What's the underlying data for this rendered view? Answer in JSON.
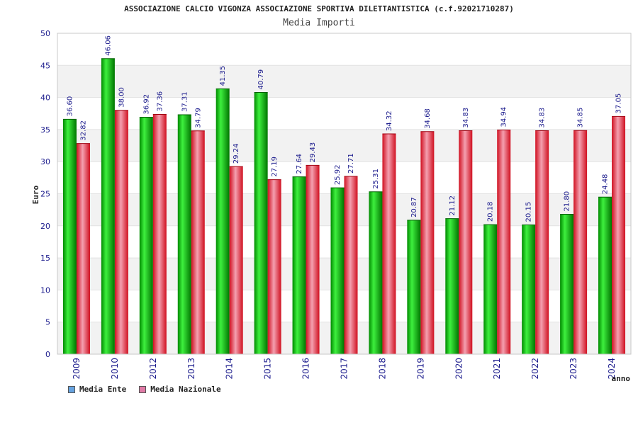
{
  "chart_data": {
    "type": "bar",
    "title": "ASSOCIAZIONE CALCIO VIGONZA ASSOCIAZIONE SPORTIVA DILETTANTISTICA (c.f.92021710287)",
    "subtitle": "Media Importi",
    "ylabel": "Euro",
    "xlabel": "anno",
    "ylim": [
      0,
      50
    ],
    "yticks": [
      0,
      5,
      10,
      15,
      20,
      25,
      30,
      35,
      40,
      45,
      50
    ],
    "grid": true,
    "legend_position": "bottom-left",
    "categories": [
      "2009",
      "2010",
      "2012",
      "2013",
      "2014",
      "2015",
      "2016",
      "2017",
      "2018",
      "2019",
      "2020",
      "2021",
      "2022",
      "2023",
      "2024"
    ],
    "series": [
      {
        "name": "Media Ente",
        "color": "#00b000",
        "legend_color": "#66a3e0",
        "values": [
          36.6,
          46.06,
          36.92,
          37.31,
          41.35,
          40.79,
          27.64,
          25.92,
          25.31,
          20.87,
          21.12,
          20.18,
          20.15,
          21.8,
          24.48
        ],
        "labels": [
          "36.60",
          "46.06",
          "36.92",
          "37.31",
          "41.35",
          "40.79",
          "27.64",
          "25.92",
          "25.31",
          "20.87",
          "21.12",
          "20.18",
          "20.15",
          "21.80",
          "24.48"
        ]
      },
      {
        "name": "Media Nazionale",
        "color": "#e8283a",
        "legend_color": "#e07aa6",
        "values": [
          32.82,
          38.0,
          37.36,
          34.79,
          29.24,
          27.19,
          29.43,
          27.71,
          34.32,
          34.68,
          34.83,
          34.94,
          34.83,
          34.85,
          37.05
        ],
        "labels": [
          "32.82",
          "38.00",
          "37.36",
          "34.79",
          "29.24",
          "27.19",
          "29.43",
          "27.71",
          "34.32",
          "34.68",
          "34.83",
          "34.94",
          "34.83",
          "34.85",
          "37.05"
        ]
      }
    ]
  }
}
